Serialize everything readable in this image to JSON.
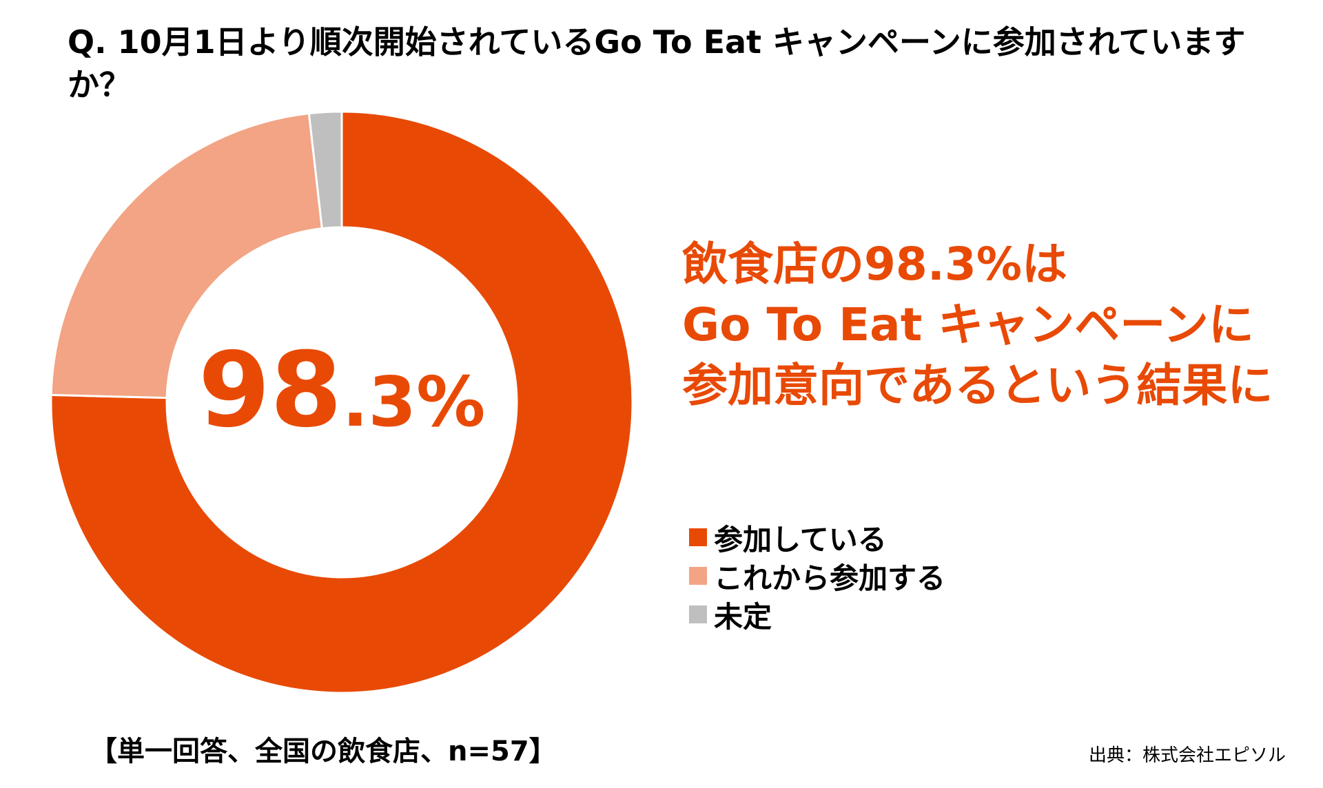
{
  "question": "Q. 10月1日より順次開始されているGo To Eat キャンペーンに参加されていますか？",
  "colors": {
    "accent": "#E84A06",
    "participating": "#E84A06",
    "will_participate": "#F2A484",
    "undecided": "#BFBFBF"
  },
  "center_label": {
    "main": "98",
    "decimal": ".3",
    "unit": "%"
  },
  "headline": [
    "飲食店の98.3%は",
    "Go To Eat キャンペーンに",
    "参加意向であるという結果に"
  ],
  "footnote": "【単一回答、全国の飲食店、n=57】",
  "source": "出典：株式会社エピソル",
  "chart_data": {
    "type": "pie",
    "subtype": "donut",
    "title": "Q. 10月1日より順次開始されているGo To Eat キャンペーンに参加されていますか？",
    "categories": [
      "参加している",
      "これから参加する",
      "未定"
    ],
    "values": [
      75.4,
      22.8,
      1.8
    ],
    "colors": [
      "#E84A06",
      "#F2A484",
      "#BFBFBF"
    ],
    "legend_position": "right"
  }
}
